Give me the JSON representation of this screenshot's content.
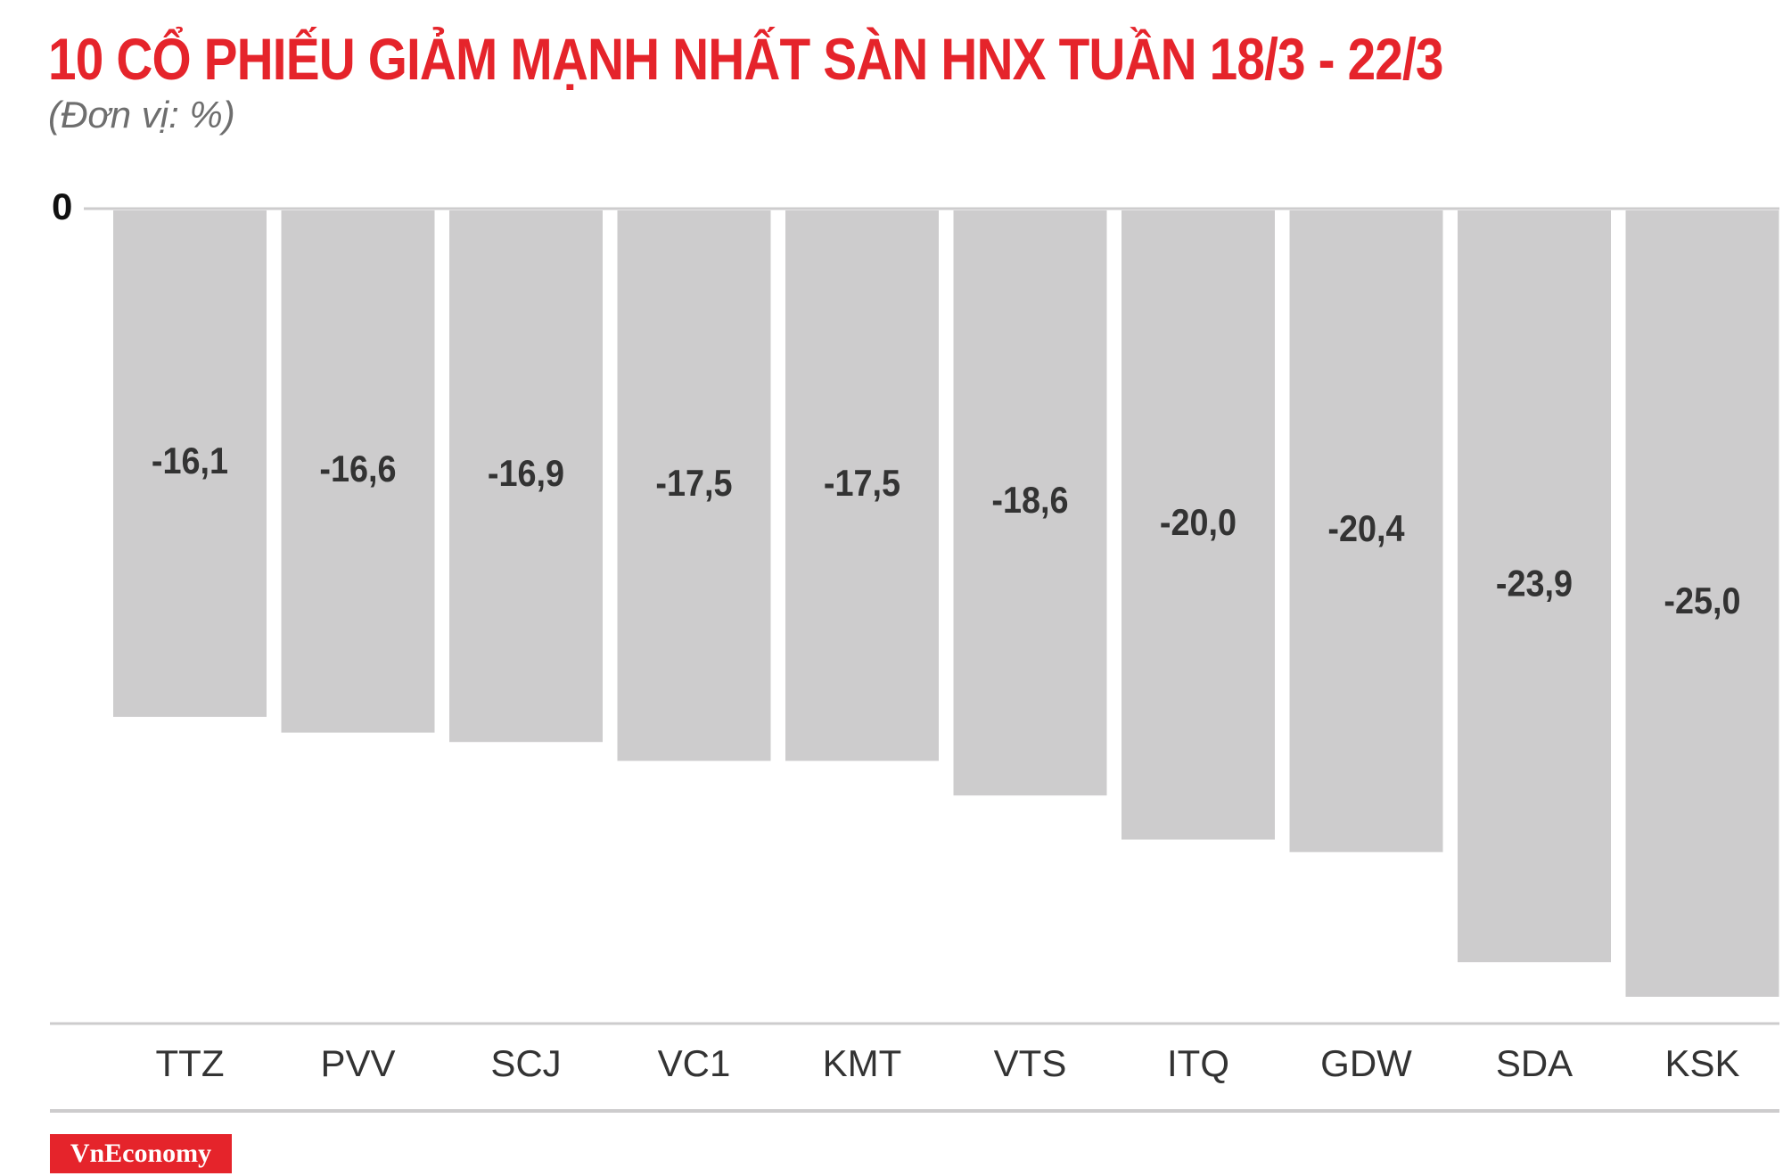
{
  "title": "10 CỔ PHIẾU GIẢM MẠNH NHẤT SÀN HNX TUẦN 18/3 - 22/3",
  "unit_label": "(Đơn vị: %)",
  "zero_label": "0",
  "brand": "VnEconomy",
  "colors": {
    "title": "#e5242b",
    "bar": "#cdcccd",
    "value_label": "#333333",
    "category_label": "#333333",
    "brand_bg": "#e5242b",
    "axis_line": "#cdcccd"
  },
  "chart_data": {
    "type": "bar",
    "title": "10 CỔ PHIẾU GIẢM MẠNH NHẤT SÀN HNX TUẦN 18/3 - 22/3",
    "ylabel": "",
    "xlabel": "",
    "categories": [
      "TTZ",
      "PVV",
      "SCJ",
      "VC1",
      "KMT",
      "VTS",
      "ITQ",
      "GDW",
      "SDA",
      "KSK"
    ],
    "values": [
      -16.1,
      -16.6,
      -16.9,
      -17.5,
      -17.5,
      -18.6,
      -20.0,
      -20.4,
      -23.9,
      -25.0
    ],
    "value_labels": [
      "-16,1",
      "-16,6",
      "-16,9",
      "-17,5",
      "-17,5",
      "-18,6",
      "-20,0",
      "-20,4",
      "-23,9",
      "-25,0"
    ],
    "ylim": [
      -25.0,
      0
    ],
    "grid": false,
    "legend": "none"
  }
}
